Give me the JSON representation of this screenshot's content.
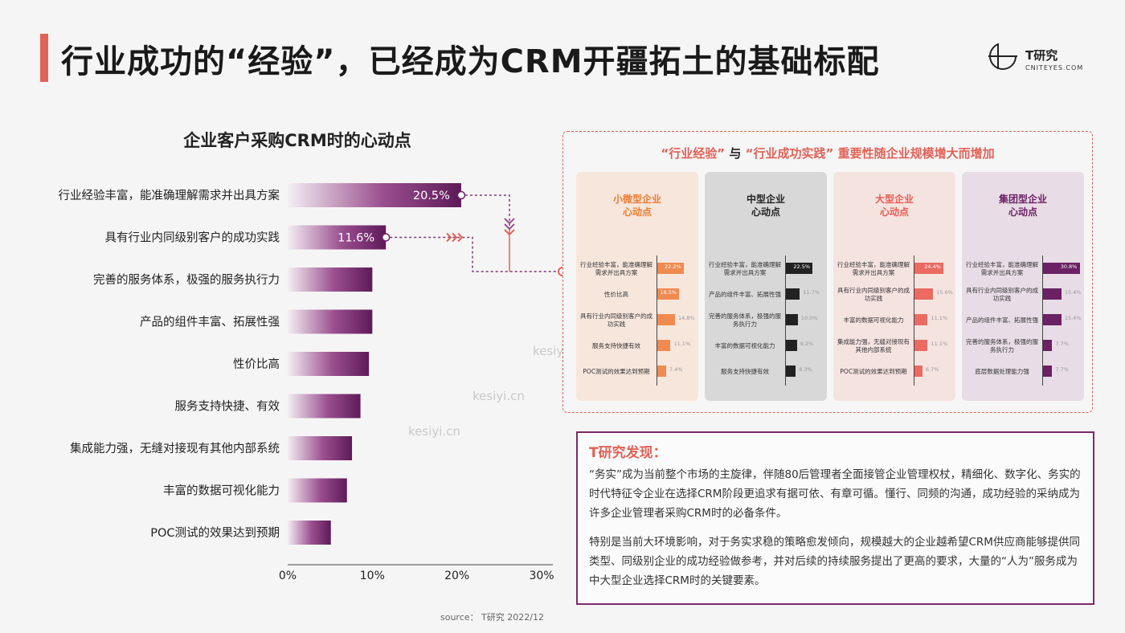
{
  "title": "行业成功的“经验”，已经成为CRM开疆拓土的基础标配",
  "logo": {
    "name": "T研究",
    "url": "CNITEYES.COM"
  },
  "watermark": "kesiyi.cn",
  "source": "source：  T研究 2022/12",
  "colors": {
    "accent": "#e26257",
    "purple": "#6b2163",
    "orange": "#f08a50",
    "dark": "#222222",
    "red": "#e86060"
  },
  "chart_data": {
    "type": "bar",
    "orientation": "horizontal",
    "title": "企业客户采购CRM时的心动点",
    "categories": [
      "行业经验丰富，能准确理解需求并出具方案",
      "具有行业内同级别客户的成功实践",
      "完善的服务体系，极强的服务执行力",
      "产品的组件丰富、拓展性强",
      "性价比高",
      "服务支持快捷、有效",
      "集成能力强，无缝对接现有其他内部系统",
      "丰富的数据可视化能力",
      "POC测试的效果达到预期"
    ],
    "values": [
      20.5,
      11.6,
      10.0,
      10.0,
      9.6,
      8.6,
      7.6,
      7.0,
      5.1
    ],
    "data_labels": [
      "20.5%",
      "11.6%",
      "",
      "",
      "",
      "",
      "",
      "",
      ""
    ],
    "xlim": [
      0,
      30
    ],
    "ticks": [
      "0%",
      "10%",
      "20%",
      "30%"
    ]
  },
  "panel": {
    "title_parts": [
      "“行业经验”",
      "与",
      "“行业成功实践”",
      "重要性随企业规模增大而增加"
    ],
    "cards": [
      {
        "title": [
          "小微型企业",
          "心动点"
        ],
        "rows": [
          {
            "label": "行业经验丰富，能准确理解需求并出具方案",
            "value": 22.2,
            "text": "22.2%"
          },
          {
            "label": "性价比高",
            "value": 18.5,
            "text": "18.5%"
          },
          {
            "label": "具有行业内同级别客户的成功实践",
            "value": 14.8,
            "text": "14.8%"
          },
          {
            "label": "服务支持快捷有效",
            "value": 11.1,
            "text": "11.1%"
          },
          {
            "label": "POC测试的效果达到预期",
            "value": 7.4,
            "text": "7.4%"
          }
        ]
      },
      {
        "title": [
          "中型企业",
          "心动点"
        ],
        "rows": [
          {
            "label": "行业经验丰富，能准确理解需求并出具方案",
            "value": 22.5,
            "text": "22.5%"
          },
          {
            "label": "产品的组件丰富、拓展性强",
            "value": 11.7,
            "text": "11.7%"
          },
          {
            "label": "完善的服务体系，极强的服务执行力",
            "value": 10.0,
            "text": "10.0%"
          },
          {
            "label": "丰富的数据可视化能力",
            "value": 9.2,
            "text": "9.2%"
          },
          {
            "label": "服务支持快捷有效",
            "value": 8.3,
            "text": "8.3%"
          }
        ]
      },
      {
        "title": [
          "大型企业",
          "心动点"
        ],
        "rows": [
          {
            "label": "行业经验丰富，能准确理解需求并出具方案",
            "value": 24.4,
            "text": "24.4%"
          },
          {
            "label": "具有行业内同级别客户的成功实践",
            "value": 15.6,
            "text": "15.6%"
          },
          {
            "label": "丰富的数据可视化能力",
            "value": 11.1,
            "text": "11.1%"
          },
          {
            "label": "集成能力强，无缝对接现有其他内部系统",
            "value": 11.1,
            "text": "11.1%"
          },
          {
            "label": "POC测试的效果达到预期",
            "value": 6.7,
            "text": "6.7%"
          }
        ]
      },
      {
        "title": [
          "集团型企业",
          "心动点"
        ],
        "rows": [
          {
            "label": "行业经验丰富，能准确理解需求并出具方案",
            "value": 30.8,
            "text": "30.8%"
          },
          {
            "label": "具有行业内同级别客户的成功实践",
            "value": 15.4,
            "text": "15.4%"
          },
          {
            "label": "产品的组件丰富、拓展性强",
            "value": 15.4,
            "text": "15.4%"
          },
          {
            "label": "完善的服务体系，极强的服务执行力",
            "value": 7.7,
            "text": "7.7%"
          },
          {
            "label": "底层数据处理能力强",
            "value": 7.7,
            "text": "7.7%"
          }
        ]
      }
    ]
  },
  "findings": {
    "heading": "T研究发现：",
    "para1": "“务实”成为当前整个市场的主旋律，伴随80后管理者全面接管企业管理权杖，精细化、数字化、务实的时代特征令企业在选择CRM阶段更追求有据可依、有章可循。懂行、同频的沟通，成功经验的采纳成为许多企业管理者采购CRM时的必备条件。",
    "para2": "特别是当前大环境影响，对于务实求稳的策略愈发倾向，规模越大的企业越希望CRM供应商能够提供同类型、同级别企业的成功经验做参考，并对后续的持续服务提出了更高的要求，大量的“人为”服务成为中大型企业选择CRM时的关键要素。"
  }
}
